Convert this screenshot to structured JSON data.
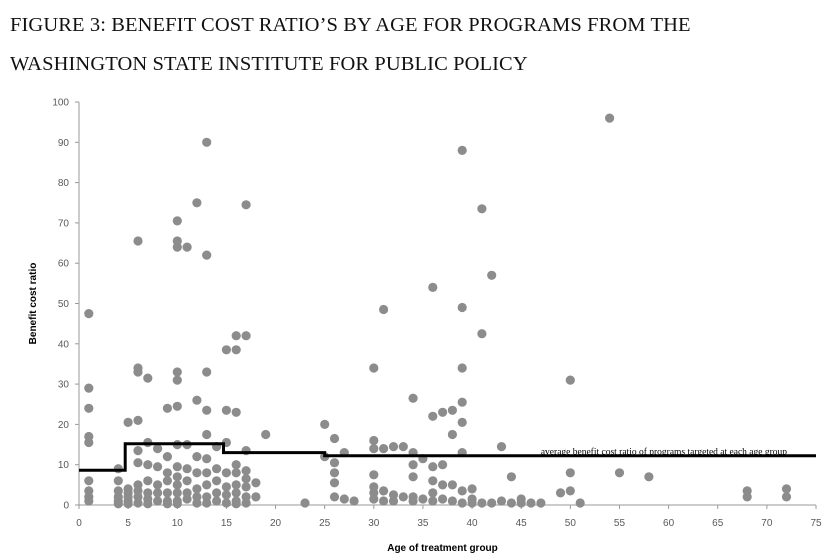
{
  "figure": {
    "title_line1": "FIGURE 3: BENEFIT COST RATIO’S BY AGE FOR PROGRAMS FROM THE",
    "title_line2": "WASHINGTON STATE INSTITUTE FOR PUBLIC POLICY"
  },
  "chart_data": {
    "type": "scatter",
    "title": "FIGURE 3: BENEFIT COST RATIO’S BY AGE FOR PROGRAMS FROM THE WASHINGTON STATE INSTITUTE FOR PUBLIC POLICY",
    "xlabel": "Age of treatment group",
    "ylabel": "Benefit cost ratio",
    "xlim": [
      0,
      75
    ],
    "ylim": [
      0,
      100
    ],
    "x_ticks": [
      0,
      5,
      10,
      15,
      20,
      25,
      30,
      35,
      40,
      45,
      50,
      55,
      60,
      65,
      70,
      75
    ],
    "y_ticks": [
      0,
      10,
      20,
      30,
      40,
      50,
      60,
      70,
      80,
      90,
      100
    ],
    "grid": false,
    "point_color": "#8c8c8c",
    "line_color": "#000000",
    "annotation": {
      "text": "average benefit cost ratio of programs targeted at each age group",
      "x": 47,
      "y": 12.5
    },
    "average_step_line": [
      [
        0,
        8.6
      ],
      [
        4.7,
        8.6
      ],
      [
        4.7,
        15.2
      ],
      [
        14.7,
        15.2
      ],
      [
        14.7,
        13.0
      ],
      [
        25,
        13.0
      ],
      [
        25,
        12.2
      ],
      [
        75,
        12.2
      ]
    ],
    "points": [
      [
        1,
        47.5
      ],
      [
        1,
        29
      ],
      [
        1,
        24
      ],
      [
        1,
        17
      ],
      [
        1,
        15.5
      ],
      [
        1,
        6
      ],
      [
        1,
        3.5
      ],
      [
        1,
        2
      ],
      [
        1,
        1
      ],
      [
        4,
        9
      ],
      [
        4,
        6
      ],
      [
        4,
        3.5
      ],
      [
        4,
        2
      ],
      [
        4,
        1
      ],
      [
        4,
        0.3
      ],
      [
        5,
        20.5
      ],
      [
        5,
        4
      ],
      [
        5,
        3
      ],
      [
        5,
        2
      ],
      [
        5,
        1
      ],
      [
        5,
        0.3
      ],
      [
        6,
        65.5
      ],
      [
        6,
        34
      ],
      [
        6,
        33
      ],
      [
        6,
        21
      ],
      [
        6,
        13.5
      ],
      [
        6,
        10.5
      ],
      [
        6,
        5
      ],
      [
        6,
        3.5
      ],
      [
        6,
        2
      ],
      [
        6,
        0.5
      ],
      [
        7,
        31.5
      ],
      [
        7,
        15.5
      ],
      [
        7,
        10
      ],
      [
        7,
        6
      ],
      [
        7,
        3
      ],
      [
        7,
        1.5
      ],
      [
        7,
        0.3
      ],
      [
        8,
        14
      ],
      [
        8,
        9.5
      ],
      [
        8,
        5
      ],
      [
        8,
        3
      ],
      [
        8,
        1
      ],
      [
        9,
        24
      ],
      [
        9,
        12
      ],
      [
        9,
        8
      ],
      [
        9,
        6
      ],
      [
        9,
        3
      ],
      [
        9,
        1
      ],
      [
        9,
        0.3
      ],
      [
        10,
        70.5
      ],
      [
        10,
        65.5
      ],
      [
        10,
        64
      ],
      [
        10,
        33
      ],
      [
        10,
        31
      ],
      [
        10,
        24.5
      ],
      [
        10,
        15
      ],
      [
        10,
        9.5
      ],
      [
        10,
        7
      ],
      [
        10,
        5
      ],
      [
        10,
        3
      ],
      [
        10,
        1
      ],
      [
        10,
        0.3
      ],
      [
        11,
        64
      ],
      [
        11,
        15
      ],
      [
        11,
        9
      ],
      [
        11,
        6
      ],
      [
        11,
        3
      ],
      [
        11,
        1.5
      ],
      [
        12,
        75
      ],
      [
        12,
        26
      ],
      [
        12,
        12
      ],
      [
        12,
        8
      ],
      [
        12,
        4
      ],
      [
        12,
        2
      ],
      [
        12,
        0.5
      ],
      [
        13,
        90
      ],
      [
        13,
        62
      ],
      [
        13,
        33
      ],
      [
        13,
        23.5
      ],
      [
        13,
        17.5
      ],
      [
        13,
        11.5
      ],
      [
        13,
        8
      ],
      [
        13,
        5
      ],
      [
        13,
        2
      ],
      [
        13,
        0.5
      ],
      [
        14,
        14.5
      ],
      [
        14,
        9
      ],
      [
        14,
        6
      ],
      [
        14,
        3
      ],
      [
        14,
        1
      ],
      [
        15,
        38.5
      ],
      [
        15,
        23.5
      ],
      [
        15,
        15.5
      ],
      [
        15,
        8
      ],
      [
        15,
        4.5
      ],
      [
        15,
        2.5
      ],
      [
        15,
        0.5
      ],
      [
        16,
        42
      ],
      [
        16,
        38.5
      ],
      [
        16,
        23
      ],
      [
        16,
        10
      ],
      [
        16,
        8
      ],
      [
        16,
        5
      ],
      [
        16,
        3
      ],
      [
        16,
        1
      ],
      [
        16,
        0.3
      ],
      [
        17,
        74.5
      ],
      [
        17,
        42
      ],
      [
        17,
        13.5
      ],
      [
        17,
        8.5
      ],
      [
        17,
        6.5
      ],
      [
        17,
        4.5
      ],
      [
        17,
        2
      ],
      [
        17,
        0.5
      ],
      [
        18,
        5.5
      ],
      [
        18,
        2
      ],
      [
        19,
        17.5
      ],
      [
        23,
        0.5
      ],
      [
        25,
        20
      ],
      [
        25,
        12
      ],
      [
        26,
        16.5
      ],
      [
        26,
        10.5
      ],
      [
        26,
        8
      ],
      [
        26,
        5.5
      ],
      [
        26,
        2
      ],
      [
        27,
        13
      ],
      [
        27,
        1.5
      ],
      [
        28,
        1
      ],
      [
        30,
        34
      ],
      [
        30,
        16
      ],
      [
        30,
        14
      ],
      [
        30,
        7.5
      ],
      [
        30,
        4.5
      ],
      [
        30,
        3
      ],
      [
        30,
        1.5
      ],
      [
        31,
        48.5
      ],
      [
        31,
        14
      ],
      [
        31,
        3.5
      ],
      [
        31,
        1
      ],
      [
        32,
        14.5
      ],
      [
        32,
        2.5
      ],
      [
        32,
        1
      ],
      [
        33,
        14.5
      ],
      [
        33,
        2
      ],
      [
        34,
        26.5
      ],
      [
        34,
        13
      ],
      [
        34,
        10
      ],
      [
        34,
        7
      ],
      [
        34,
        2
      ],
      [
        34,
        1
      ],
      [
        35,
        11.5
      ],
      [
        35,
        1.5
      ],
      [
        36,
        54
      ],
      [
        36,
        22
      ],
      [
        36,
        9.5
      ],
      [
        36,
        6
      ],
      [
        36,
        3
      ],
      [
        36,
        1
      ],
      [
        37,
        23
      ],
      [
        37,
        10
      ],
      [
        37,
        5
      ],
      [
        37,
        1.5
      ],
      [
        38,
        23.5
      ],
      [
        38,
        17.5
      ],
      [
        38,
        5
      ],
      [
        38,
        1
      ],
      [
        39,
        88
      ],
      [
        39,
        49
      ],
      [
        39,
        34
      ],
      [
        39,
        25.5
      ],
      [
        39,
        20.5
      ],
      [
        39,
        13
      ],
      [
        39,
        3.5
      ],
      [
        39,
        0.5
      ],
      [
        40,
        4
      ],
      [
        40,
        1.5
      ],
      [
        40,
        0.5
      ],
      [
        41,
        73.5
      ],
      [
        41,
        42.5
      ],
      [
        41,
        0.5
      ],
      [
        42,
        57
      ],
      [
        42,
        0.5
      ],
      [
        43,
        14.5
      ],
      [
        43,
        1
      ],
      [
        44,
        7
      ],
      [
        44,
        0.5
      ],
      [
        45,
        1.5
      ],
      [
        45,
        0.5
      ],
      [
        46,
        0.5
      ],
      [
        47,
        0.5
      ],
      [
        49,
        3
      ],
      [
        50,
        31
      ],
      [
        50,
        8
      ],
      [
        50,
        3.5
      ],
      [
        51,
        0.5
      ],
      [
        54,
        96
      ],
      [
        55,
        8
      ],
      [
        58,
        7
      ],
      [
        68,
        3.5
      ],
      [
        68,
        2
      ],
      [
        72,
        4
      ],
      [
        72,
        2
      ]
    ]
  }
}
